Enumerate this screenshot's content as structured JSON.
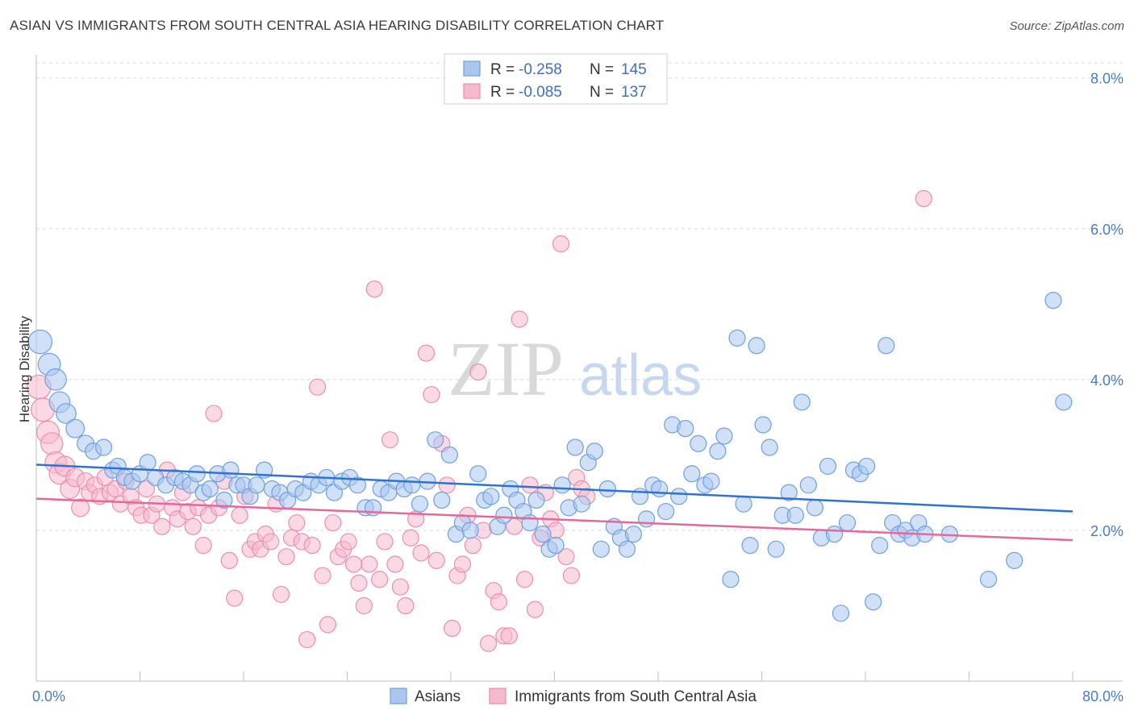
{
  "header": {
    "title": "ASIAN VS IMMIGRANTS FROM SOUTH CENTRAL ASIA HEARING DISABILITY CORRELATION CHART",
    "source": "Source: ZipAtlas.com"
  },
  "watermark": {
    "zip": "ZIP",
    "atlas": "atlas"
  },
  "colors": {
    "asian_fill": "#a9c6ee",
    "asian_stroke": "#6f9fe0",
    "asian_line": "#2f72d2",
    "imm_fill": "#f7b9cd",
    "imm_stroke": "#ec8eab",
    "imm_line": "#e4689a",
    "tick_color": "#4a7cc4",
    "grid": "#d8d8d8"
  },
  "legend": {
    "rows": [
      {
        "r_label": "R =",
        "r_value": "-0.258",
        "n_label": "N =",
        "n_value": "145"
      },
      {
        "r_label": "R =",
        "r_value": "-0.085",
        "n_label": "N =",
        "n_value": "137"
      }
    ]
  },
  "chart_data": {
    "type": "scatter",
    "title": "ASIAN VS IMMIGRANTS FROM SOUTH CENTRAL ASIA HEARING DISABILITY CORRELATION CHART",
    "xlabel": "",
    "ylabel": "Hearing Disability",
    "xlim": [
      0,
      80
    ],
    "ylim": [
      0,
      8.2
    ],
    "x_tick_labels": [
      "0.0%",
      "80.0%"
    ],
    "y_ticks": [
      2,
      4,
      6,
      8
    ],
    "y_tick_labels": [
      "2.0%",
      "4.0%",
      "6.0%",
      "8.0%"
    ],
    "grid": "horizontal dashed",
    "legend_position": "top-center",
    "series": [
      {
        "name": "Asians",
        "trend": [
          [
            0,
            2.87
          ],
          [
            80,
            2.25
          ]
        ],
        "points": [
          [
            0.3,
            4.5
          ],
          [
            1.0,
            4.2
          ],
          [
            1.5,
            4.0
          ],
          [
            1.8,
            3.7
          ],
          [
            2.3,
            3.55
          ],
          [
            3.0,
            3.35
          ],
          [
            3.8,
            3.15
          ],
          [
            4.4,
            3.05
          ],
          [
            5.2,
            3.1
          ],
          [
            5.9,
            2.8
          ],
          [
            6.3,
            2.85
          ],
          [
            6.8,
            2.7
          ],
          [
            7.4,
            2.65
          ],
          [
            8.0,
            2.75
          ],
          [
            8.6,
            2.9
          ],
          [
            9.2,
            2.7
          ],
          [
            10.0,
            2.6
          ],
          [
            10.7,
            2.7
          ],
          [
            11.3,
            2.65
          ],
          [
            11.9,
            2.6
          ],
          [
            12.4,
            2.75
          ],
          [
            12.9,
            2.5
          ],
          [
            13.4,
            2.55
          ],
          [
            14.0,
            2.75
          ],
          [
            14.5,
            2.4
          ],
          [
            15.0,
            2.8
          ],
          [
            15.5,
            2.6
          ],
          [
            16.0,
            2.6
          ],
          [
            16.5,
            2.45
          ],
          [
            17.0,
            2.6
          ],
          [
            17.6,
            2.8
          ],
          [
            18.2,
            2.55
          ],
          [
            18.8,
            2.5
          ],
          [
            19.4,
            2.4
          ],
          [
            20.0,
            2.55
          ],
          [
            20.6,
            2.5
          ],
          [
            21.2,
            2.65
          ],
          [
            21.8,
            2.6
          ],
          [
            22.4,
            2.7
          ],
          [
            23.0,
            2.5
          ],
          [
            23.6,
            2.65
          ],
          [
            24.2,
            2.7
          ],
          [
            24.8,
            2.6
          ],
          [
            25.4,
            2.3
          ],
          [
            26.0,
            2.3
          ],
          [
            26.6,
            2.55
          ],
          [
            27.2,
            2.5
          ],
          [
            27.8,
            2.65
          ],
          [
            28.4,
            2.55
          ],
          [
            29.0,
            2.6
          ],
          [
            29.6,
            2.35
          ],
          [
            30.2,
            2.65
          ],
          [
            30.8,
            3.2
          ],
          [
            31.3,
            2.4
          ],
          [
            31.9,
            3.0
          ],
          [
            32.4,
            1.95
          ],
          [
            32.9,
            2.1
          ],
          [
            33.5,
            2.0
          ],
          [
            34.1,
            2.75
          ],
          [
            34.6,
            2.4
          ],
          [
            35.1,
            2.45
          ],
          [
            35.6,
            2.05
          ],
          [
            36.1,
            2.2
          ],
          [
            36.6,
            2.55
          ],
          [
            37.1,
            2.4
          ],
          [
            37.6,
            2.25
          ],
          [
            38.1,
            2.1
          ],
          [
            38.6,
            2.4
          ],
          [
            39.1,
            1.95
          ],
          [
            39.6,
            1.75
          ],
          [
            40.1,
            1.8
          ],
          [
            40.6,
            2.6
          ],
          [
            41.1,
            2.3
          ],
          [
            41.6,
            3.1
          ],
          [
            42.1,
            2.35
          ],
          [
            42.6,
            2.9
          ],
          [
            43.1,
            3.05
          ],
          [
            43.6,
            1.75
          ],
          [
            44.1,
            2.55
          ],
          [
            44.6,
            2.05
          ],
          [
            45.1,
            1.9
          ],
          [
            45.6,
            1.75
          ],
          [
            46.1,
            1.95
          ],
          [
            46.6,
            2.45
          ],
          [
            47.1,
            2.15
          ],
          [
            47.6,
            2.6
          ],
          [
            48.1,
            2.55
          ],
          [
            48.6,
            2.25
          ],
          [
            49.1,
            3.4
          ],
          [
            49.6,
            2.45
          ],
          [
            50.1,
            3.35
          ],
          [
            50.6,
            2.75
          ],
          [
            51.1,
            3.15
          ],
          [
            51.6,
            2.6
          ],
          [
            52.1,
            2.65
          ],
          [
            52.6,
            3.05
          ],
          [
            53.1,
            3.25
          ],
          [
            53.6,
            1.35
          ],
          [
            54.1,
            4.55
          ],
          [
            54.6,
            2.35
          ],
          [
            55.1,
            1.8
          ],
          [
            55.6,
            4.45
          ],
          [
            56.1,
            3.4
          ],
          [
            56.6,
            3.1
          ],
          [
            57.1,
            1.75
          ],
          [
            57.6,
            2.2
          ],
          [
            58.1,
            2.5
          ],
          [
            58.6,
            2.2
          ],
          [
            59.1,
            3.7
          ],
          [
            59.6,
            2.6
          ],
          [
            60.1,
            2.3
          ],
          [
            60.6,
            1.9
          ],
          [
            61.1,
            2.85
          ],
          [
            61.6,
            1.95
          ],
          [
            62.1,
            0.9
          ],
          [
            62.6,
            2.1
          ],
          [
            63.1,
            2.8
          ],
          [
            63.6,
            2.75
          ],
          [
            64.1,
            2.85
          ],
          [
            64.6,
            1.05
          ],
          [
            65.1,
            1.8
          ],
          [
            65.6,
            4.45
          ],
          [
            66.1,
            2.1
          ],
          [
            66.6,
            1.95
          ],
          [
            67.1,
            2.0
          ],
          [
            67.6,
            1.9
          ],
          [
            68.1,
            2.1
          ],
          [
            68.6,
            1.95
          ],
          [
            70.5,
            1.95
          ],
          [
            73.5,
            1.35
          ],
          [
            75.5,
            1.6
          ],
          [
            78.5,
            5.05
          ],
          [
            79.3,
            3.7
          ]
        ]
      },
      {
        "name": "Immigrants from South Central Asia",
        "trend": [
          [
            0,
            2.42
          ],
          [
            80,
            1.87
          ]
        ],
        "points": [
          [
            0.2,
            3.9
          ],
          [
            0.5,
            3.6
          ],
          [
            0.9,
            3.3
          ],
          [
            1.2,
            3.15
          ],
          [
            1.5,
            2.9
          ],
          [
            1.8,
            2.75
          ],
          [
            2.2,
            2.85
          ],
          [
            2.6,
            2.55
          ],
          [
            3.0,
            2.7
          ],
          [
            3.4,
            2.3
          ],
          [
            3.8,
            2.65
          ],
          [
            4.1,
            2.5
          ],
          [
            4.5,
            2.6
          ],
          [
            4.9,
            2.45
          ],
          [
            5.3,
            2.7
          ],
          [
            5.7,
            2.5
          ],
          [
            6.1,
            2.55
          ],
          [
            6.5,
            2.35
          ],
          [
            6.9,
            2.65
          ],
          [
            7.3,
            2.45
          ],
          [
            7.7,
            2.3
          ],
          [
            8.1,
            2.2
          ],
          [
            8.5,
            2.55
          ],
          [
            8.9,
            2.2
          ],
          [
            9.3,
            2.35
          ],
          [
            9.7,
            2.05
          ],
          [
            10.1,
            2.8
          ],
          [
            10.5,
            2.3
          ],
          [
            10.9,
            2.15
          ],
          [
            11.3,
            2.5
          ],
          [
            11.7,
            2.25
          ],
          [
            12.1,
            2.05
          ],
          [
            12.5,
            2.3
          ],
          [
            12.9,
            1.8
          ],
          [
            13.3,
            2.2
          ],
          [
            13.7,
            3.55
          ],
          [
            14.1,
            2.3
          ],
          [
            14.5,
            2.65
          ],
          [
            14.9,
            1.6
          ],
          [
            15.3,
            1.1
          ],
          [
            15.7,
            2.2
          ],
          [
            16.1,
            2.45
          ],
          [
            16.5,
            1.75
          ],
          [
            16.9,
            1.85
          ],
          [
            17.3,
            1.75
          ],
          [
            17.7,
            1.95
          ],
          [
            18.1,
            1.85
          ],
          [
            18.5,
            2.35
          ],
          [
            18.9,
            1.15
          ],
          [
            19.3,
            1.65
          ],
          [
            19.7,
            1.9
          ],
          [
            20.1,
            2.1
          ],
          [
            20.5,
            1.85
          ],
          [
            20.9,
            0.55
          ],
          [
            21.3,
            1.8
          ],
          [
            21.7,
            3.9
          ],
          [
            22.1,
            1.4
          ],
          [
            22.5,
            0.75
          ],
          [
            22.9,
            2.1
          ],
          [
            23.3,
            1.65
          ],
          [
            23.7,
            1.75
          ],
          [
            24.1,
            1.85
          ],
          [
            24.5,
            1.55
          ],
          [
            24.9,
            1.3
          ],
          [
            25.3,
            1.0
          ],
          [
            25.7,
            1.55
          ],
          [
            26.1,
            5.2
          ],
          [
            26.5,
            1.35
          ],
          [
            26.9,
            1.85
          ],
          [
            27.3,
            3.2
          ],
          [
            27.7,
            1.55
          ],
          [
            28.1,
            1.25
          ],
          [
            28.5,
            1.0
          ],
          [
            28.9,
            1.9
          ],
          [
            29.3,
            2.15
          ],
          [
            29.7,
            1.7
          ],
          [
            30.1,
            4.35
          ],
          [
            30.5,
            3.8
          ],
          [
            30.9,
            1.6
          ],
          [
            31.3,
            3.15
          ],
          [
            31.7,
            2.6
          ],
          [
            32.1,
            0.7
          ],
          [
            32.5,
            1.4
          ],
          [
            32.9,
            1.55
          ],
          [
            33.3,
            2.2
          ],
          [
            33.7,
            1.8
          ],
          [
            34.1,
            4.1
          ],
          [
            34.5,
            2.0
          ],
          [
            34.9,
            0.5
          ],
          [
            35.3,
            1.2
          ],
          [
            35.7,
            1.05
          ],
          [
            36.1,
            0.6
          ],
          [
            36.5,
            0.6
          ],
          [
            36.9,
            2.05
          ],
          [
            37.3,
            4.8
          ],
          [
            37.7,
            1.35
          ],
          [
            38.1,
            2.6
          ],
          [
            38.5,
            0.95
          ],
          [
            38.9,
            1.9
          ],
          [
            39.3,
            2.5
          ],
          [
            39.7,
            2.15
          ],
          [
            40.1,
            2.0
          ],
          [
            40.5,
            5.8
          ],
          [
            40.9,
            1.65
          ],
          [
            41.3,
            1.4
          ],
          [
            41.7,
            2.7
          ],
          [
            42.1,
            2.55
          ],
          [
            42.5,
            2.45
          ],
          [
            68.5,
            6.4
          ]
        ]
      }
    ]
  },
  "bottom_legend": {
    "series_a": "Asians",
    "series_b": "Immigrants from South Central Asia"
  }
}
